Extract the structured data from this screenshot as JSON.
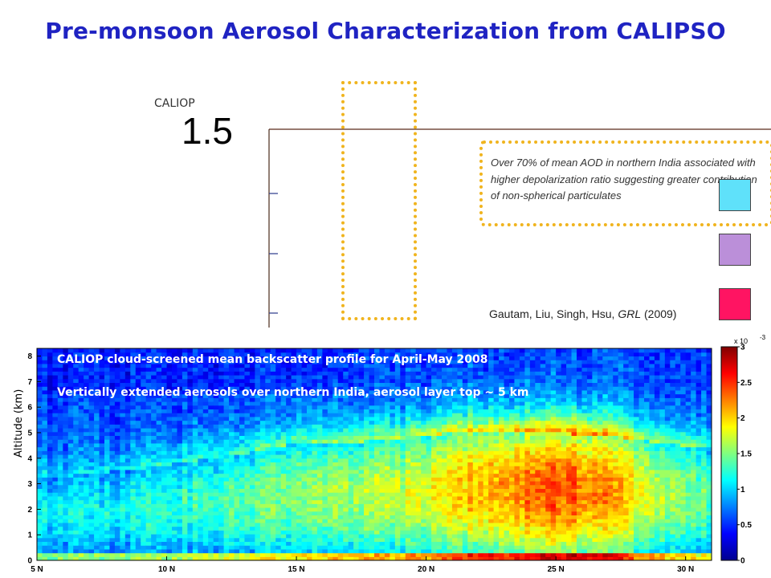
{
  "slide": {
    "title": "Pre-monsoon Aerosol Characterization from CALIPSO",
    "caliop_label": "CALIOP",
    "aod_axis_top_tick": "1.5",
    "callout_text": "Over 70% of mean AOD in northern India associated with higher depolarization ratio suggesting greater contribution of non-spherical particulates",
    "citation_authors": "Gautam, Liu, Singh, Hsu,",
    "citation_journal": "GRL",
    "citation_year": "(2009)",
    "legend_swatch_colors": [
      "#5fe1fa",
      "#bb8fd9",
      "#ff1462"
    ],
    "highlight_color": "#f0b41e"
  },
  "chart_data": {
    "type": "heatmap",
    "title": "CALIOP cloud-screened mean backscatter profile for April-May 2008",
    "subtitle": "Vertically extended aerosols over northern India, aerosol layer top ~ 5 km",
    "xlabel": "",
    "ylabel": "Altitude (km)",
    "x_ticks": [
      "5 N",
      "10 N",
      "15 N",
      "20 N",
      "25 N",
      "30 N"
    ],
    "x_tick_values": [
      5,
      10,
      15,
      20,
      25,
      30
    ],
    "xlim": [
      5,
      31
    ],
    "y_ticks": [
      "0",
      "1",
      "2",
      "3",
      "4",
      "5",
      "6",
      "7",
      "8"
    ],
    "ylim": [
      0,
      8.3
    ],
    "colorbar": {
      "ticks": [
        "0",
        "0.5",
        "1",
        "1.5",
        "2",
        "2.5",
        "3"
      ],
      "tick_values": [
        0,
        0.5,
        1,
        1.5,
        2,
        2.5,
        3
      ],
      "multiplier": "x 10",
      "exponent": "-3",
      "range": [
        0,
        3
      ],
      "colormap": "jet"
    },
    "approx_field": {
      "latitude": [
        5,
        7,
        9,
        11,
        13,
        15,
        17,
        19,
        21,
        23,
        25,
        27,
        29,
        31
      ],
      "aerosol_layer_top_km": [
        3.2,
        3.4,
        3.6,
        3.9,
        4.2,
        4.6,
        4.6,
        4.8,
        5.0,
        5.0,
        5.0,
        4.9,
        4.6,
        4.4
      ],
      "peak_backscatter_e-3": [
        1.1,
        1.1,
        1.2,
        1.3,
        1.4,
        1.5,
        1.6,
        1.7,
        2.0,
        2.2,
        2.4,
        2.2,
        1.7,
        1.4
      ]
    }
  }
}
